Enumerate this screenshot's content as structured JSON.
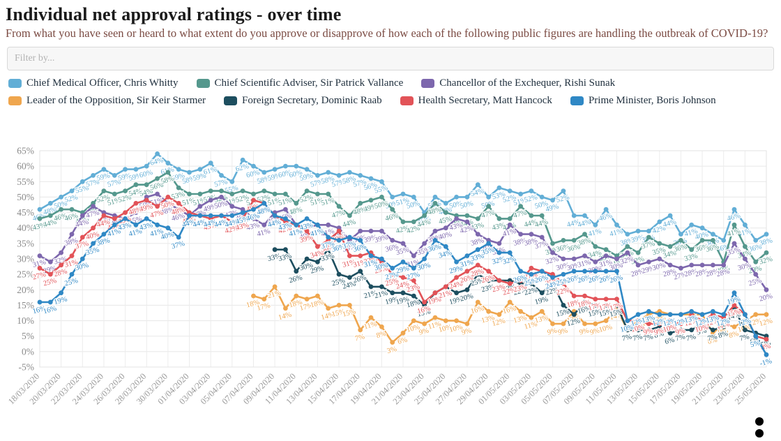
{
  "header": {
    "title": "Individual net approval ratings - over time",
    "subtitle": "From what you have seen or heard to what extent do you approve or disapprove of how each of the following public figures are handling the outbreak of COVID-19?"
  },
  "filter": {
    "placeholder": "Filter by..."
  },
  "legend": {
    "rows": [
      [
        {
          "label": "Chief Medical Officer, Chris Whitty",
          "color": "#62aed6"
        },
        {
          "label": "Chief Scientific Adviser, Sir Patrick Vallance",
          "color": "#55988d"
        },
        {
          "label": "Chancellor of the Exchequer, Rishi Sunak",
          "color": "#7d67ad"
        }
      ],
      [
        {
          "label": "Leader of the Opposition, Sir Keir Starmer",
          "color": "#efa64e"
        },
        {
          "label": "Foreign Secretary, Dominic Raab",
          "color": "#1d4e5f"
        },
        {
          "label": "Health Secretary, Matt Hancock",
          "color": "#e25358"
        },
        {
          "label": "Prime Minister, Boris Johnson",
          "color": "#2f88c5"
        }
      ]
    ]
  },
  "chart_data": {
    "type": "line",
    "title": "Individual net approval ratings - over time",
    "xlabel": "",
    "ylabel": "",
    "ylim": [
      -5,
      65
    ],
    "ytick_step": 5,
    "ytick_suffix": "%",
    "grid": true,
    "legend_position": "top",
    "num_points": 69,
    "x_tick_every": 2,
    "x_tick_labels": [
      "18/03/2020",
      "20/03/2020",
      "22/03/2020",
      "24/03/2020",
      "26/03/2020",
      "28/03/2020",
      "30/03/2020",
      "01/04/2020",
      "03/04/2020",
      "05/04/2020",
      "07/04/2020",
      "09/04/2020",
      "11/04/2020",
      "13/04/2020",
      "15/04/2020",
      "17/04/2020",
      "19/04/2020",
      "21/04/2020",
      "23/04/2020",
      "25/04/2020",
      "27/04/2020",
      "29/04/2020",
      "01/05/2020",
      "03/05/2020",
      "05/05/2020",
      "07/05/2020",
      "09/05/2020",
      "11/05/2020",
      "13/05/2020",
      "15/05/2020",
      "17/05/2020",
      "19/05/2020",
      "21/05/2020",
      "23/05/2020",
      "25/05/2020"
    ],
    "series": [
      {
        "name": "Chief Medical Officer, Chris Whitty",
        "color": "#62aed6",
        "values": [
          46,
          48,
          50,
          52,
          55,
          57,
          59,
          57,
          59,
          59,
          60,
          64,
          61,
          59,
          58,
          59,
          61,
          57,
          55,
          62,
          60,
          58,
          59,
          60,
          60,
          59,
          57,
          58,
          57,
          58,
          57,
          56,
          55,
          50,
          51,
          50,
          45,
          50,
          48,
          50,
          50,
          54,
          50,
          53,
          52,
          51,
          52,
          50,
          49,
          52,
          44,
          44,
          41,
          46,
          41,
          38,
          39,
          39,
          42,
          44,
          38,
          41,
          40,
          38,
          36,
          46,
          41,
          36,
          38
        ]
      },
      {
        "name": "Chief Scientific Adviser, Sir Patrick Vallance",
        "color": "#55988d",
        "values": [
          43,
          44,
          46,
          46,
          45,
          48,
          52,
          51,
          52,
          54,
          54,
          56,
          58,
          53,
          51,
          51,
          52,
          52,
          51,
          52,
          51,
          52,
          51,
          51,
          48,
          52,
          51,
          51,
          47,
          44,
          48,
          49,
          50,
          46,
          42,
          42,
          44,
          48,
          45,
          44,
          44,
          43,
          47,
          43,
          43,
          47,
          44,
          44,
          35,
          36,
          36,
          38,
          34,
          33,
          31,
          34,
          32,
          37,
          35,
          34,
          36,
          33,
          36,
          36,
          29,
          41,
          34,
          29,
          32
        ]
      },
      {
        "name": "Chancellor of the Exchequer, Rishi Sunak",
        "color": "#7d67ad",
        "values": [
          31,
          29,
          32,
          38,
          44,
          47,
          45,
          44,
          43,
          45,
          50,
          51,
          48,
          46,
          44,
          47,
          49,
          50,
          47,
          46,
          43,
          41,
          45,
          46,
          41,
          40,
          41,
          41,
          40,
          36,
          39,
          39,
          39,
          36,
          35,
          31,
          35,
          39,
          40,
          43,
          42,
          38,
          36,
          35,
          41,
          38,
          38,
          37,
          32,
          30,
          30,
          31,
          29,
          31,
          30,
          32,
          28,
          29,
          30,
          28,
          27,
          28,
          28,
          28,
          28,
          35,
          30,
          25,
          20
        ]
      },
      {
        "name": "Leader of the Opposition, Sir Keir Starmer",
        "color": "#efa64e",
        "values": [
          null,
          null,
          null,
          null,
          null,
          null,
          null,
          null,
          null,
          null,
          null,
          null,
          null,
          null,
          null,
          null,
          null,
          null,
          null,
          null,
          18,
          17,
          21,
          14,
          18,
          17,
          18,
          14,
          15,
          15,
          7,
          11,
          8,
          3,
          6,
          10,
          9,
          11,
          10,
          10,
          9,
          16,
          13,
          12,
          16,
          13,
          11,
          13,
          9,
          9,
          13,
          9,
          9,
          10,
          14,
          7,
          10,
          12,
          13,
          12,
          12,
          12,
          12,
          6,
          9,
          8,
          10,
          12,
          12
        ]
      },
      {
        "name": "Foreign Secretary, Dominic Raab",
        "color": "#1d4e5f",
        "values": [
          null,
          null,
          null,
          null,
          null,
          null,
          null,
          null,
          null,
          null,
          null,
          null,
          null,
          null,
          null,
          null,
          null,
          null,
          null,
          null,
          null,
          null,
          33,
          33,
          26,
          30,
          29,
          33,
          25,
          24,
          26,
          21,
          21,
          19,
          19,
          18,
          15,
          19,
          21,
          19,
          20,
          25,
          23,
          23,
          23,
          22,
          22,
          19,
          22,
          15,
          12,
          16,
          15,
          15,
          15,
          7,
          7,
          7,
          8,
          6,
          7,
          7,
          9,
          7,
          8,
          14,
          7,
          6,
          5
        ]
      },
      {
        "name": "Health Secretary, Matt Hancock",
        "color": "#e25358",
        "values": [
          27,
          25,
          28,
          31,
          37,
          40,
          44,
          43,
          45,
          48,
          49,
          47,
          50,
          48,
          45,
          44,
          43,
          44,
          42,
          43,
          49,
          48,
          44,
          42,
          41,
          39,
          34,
          36,
          39,
          31,
          31,
          32,
          29,
          25,
          24,
          23,
          16,
          19,
          21,
          24,
          26,
          28,
          26,
          23,
          22,
          23,
          27,
          26,
          25,
          22,
          18,
          18,
          17,
          17,
          17,
          10,
          10,
          9,
          9,
          10,
          9,
          12,
          10,
          12,
          11,
          15,
          12,
          5,
          4
        ]
      },
      {
        "name": "Prime Minister, Boris Johnson",
        "color": "#2f88c5",
        "values": [
          16,
          16,
          19,
          25,
          30,
          35,
          38,
          41,
          43,
          41,
          43,
          41,
          40,
          37,
          44,
          44,
          44,
          44,
          44,
          45,
          46,
          48,
          44,
          43,
          41,
          43,
          41,
          37,
          36,
          37,
          36,
          31,
          30,
          27,
          29,
          27,
          30,
          36,
          34,
          29,
          31,
          33,
          35,
          32,
          32,
          26,
          25,
          26,
          24,
          25,
          26,
          26,
          26,
          26,
          26,
          10,
          12,
          13,
          12,
          12,
          12,
          13,
          12,
          13,
          12,
          19,
          12,
          5,
          -1
        ]
      }
    ]
  }
}
